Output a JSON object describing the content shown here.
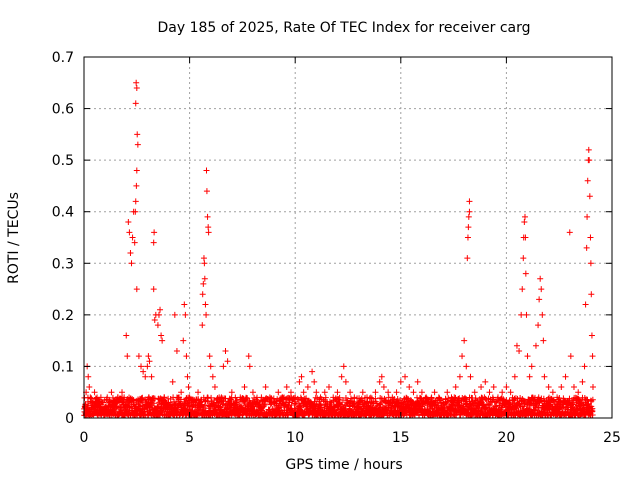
{
  "chart_data": {
    "type": "scatter",
    "title": "Day 185 of 2025, Rate Of TEC Index for receiver carg",
    "xlabel": "GPS time / hours",
    "ylabel": "ROTI / TECUs",
    "xlim": [
      0,
      25
    ],
    "ylim": [
      0,
      0.7
    ],
    "grid": true,
    "marker": "+",
    "color": "#ff0000",
    "xticks": [
      0,
      5,
      10,
      15,
      20,
      25
    ],
    "xtick_labels": [
      "0",
      "5",
      "10",
      "15",
      "20",
      "25"
    ],
    "yticks": [
      0,
      0.1,
      0.2,
      0.3,
      0.4,
      0.5,
      0.6,
      0.7
    ],
    "ytick_labels": [
      "0",
      "0.1",
      "0.2",
      "0.3",
      "0.4",
      "0.5",
      "0.6",
      "0.7"
    ],
    "series": [
      {
        "name": "ROTI",
        "points": [
          [
            0.05,
            0.02
          ],
          [
            0.1,
            0.05
          ],
          [
            0.15,
            0.1
          ],
          [
            0.2,
            0.08
          ],
          [
            0.25,
            0.06
          ],
          [
            0.3,
            0.04
          ],
          [
            0.4,
            0.03
          ],
          [
            0.5,
            0.05
          ],
          [
            0.6,
            0.03
          ],
          [
            0.7,
            0.02
          ],
          [
            0.8,
            0.04
          ],
          [
            0.9,
            0.03
          ],
          [
            1.0,
            0.02
          ],
          [
            1.1,
            0.04
          ],
          [
            1.2,
            0.03
          ],
          [
            1.3,
            0.05
          ],
          [
            1.4,
            0.02
          ],
          [
            1.5,
            0.03
          ],
          [
            1.6,
            0.04
          ],
          [
            1.7,
            0.03
          ],
          [
            1.8,
            0.05
          ],
          [
            1.9,
            0.04
          ],
          [
            2.0,
            0.16
          ],
          [
            2.05,
            0.12
          ],
          [
            2.1,
            0.38
          ],
          [
            2.15,
            0.36
          ],
          [
            2.2,
            0.32
          ],
          [
            2.25,
            0.3
          ],
          [
            2.3,
            0.35
          ],
          [
            2.35,
            0.4
          ],
          [
            2.4,
            0.34
          ],
          [
            2.45,
            0.61
          ],
          [
            2.47,
            0.65
          ],
          [
            2.5,
            0.64
          ],
          [
            2.52,
            0.55
          ],
          [
            2.55,
            0.53
          ],
          [
            2.5,
            0.48
          ],
          [
            2.48,
            0.45
          ],
          [
            2.45,
            0.42
          ],
          [
            2.43,
            0.4
          ],
          [
            2.5,
            0.25
          ],
          [
            2.6,
            0.12
          ],
          [
            2.7,
            0.1
          ],
          [
            2.8,
            0.09
          ],
          [
            2.9,
            0.08
          ],
          [
            3.0,
            0.1
          ],
          [
            3.05,
            0.12
          ],
          [
            3.1,
            0.11
          ],
          [
            3.2,
            0.08
          ],
          [
            3.3,
            0.34
          ],
          [
            3.32,
            0.36
          ],
          [
            3.3,
            0.25
          ],
          [
            3.35,
            0.19
          ],
          [
            3.4,
            0.2
          ],
          [
            3.5,
            0.18
          ],
          [
            3.55,
            0.2
          ],
          [
            3.6,
            0.21
          ],
          [
            3.65,
            0.16
          ],
          [
            3.7,
            0.15
          ],
          [
            3.8,
            0.04
          ],
          [
            4.0,
            0.03
          ],
          [
            4.2,
            0.07
          ],
          [
            4.3,
            0.2
          ],
          [
            4.4,
            0.13
          ],
          [
            4.5,
            0.04
          ],
          [
            4.6,
            0.05
          ],
          [
            4.7,
            0.15
          ],
          [
            4.75,
            0.22
          ],
          [
            4.8,
            0.2
          ],
          [
            4.85,
            0.12
          ],
          [
            4.9,
            0.08
          ],
          [
            4.95,
            0.06
          ],
          [
            5.0,
            0.04
          ],
          [
            5.2,
            0.03
          ],
          [
            5.4,
            0.05
          ],
          [
            5.6,
            0.18
          ],
          [
            5.62,
            0.24
          ],
          [
            5.65,
            0.26
          ],
          [
            5.68,
            0.31
          ],
          [
            5.7,
            0.3
          ],
          [
            5.72,
            0.27
          ],
          [
            5.75,
            0.22
          ],
          [
            5.78,
            0.2
          ],
          [
            5.8,
            0.48
          ],
          [
            5.82,
            0.44
          ],
          [
            5.85,
            0.39
          ],
          [
            5.88,
            0.37
          ],
          [
            5.9,
            0.36
          ],
          [
            5.95,
            0.12
          ],
          [
            6.0,
            0.1
          ],
          [
            6.1,
            0.08
          ],
          [
            6.2,
            0.06
          ],
          [
            6.4,
            0.04
          ],
          [
            6.6,
            0.1
          ],
          [
            6.7,
            0.13
          ],
          [
            6.8,
            0.11
          ],
          [
            7.0,
            0.05
          ],
          [
            7.2,
            0.03
          ],
          [
            7.4,
            0.04
          ],
          [
            7.6,
            0.06
          ],
          [
            7.8,
            0.12
          ],
          [
            7.85,
            0.1
          ],
          [
            8.0,
            0.05
          ],
          [
            8.2,
            0.03
          ],
          [
            8.4,
            0.04
          ],
          [
            8.6,
            0.06
          ],
          [
            8.8,
            0.04
          ],
          [
            9.0,
            0.03
          ],
          [
            9.2,
            0.05
          ],
          [
            9.4,
            0.04
          ],
          [
            9.6,
            0.06
          ],
          [
            9.8,
            0.05
          ],
          [
            10.0,
            0.04
          ],
          [
            10.2,
            0.07
          ],
          [
            10.3,
            0.08
          ],
          [
            10.4,
            0.05
          ],
          [
            10.6,
            0.06
          ],
          [
            10.8,
            0.09
          ],
          [
            10.9,
            0.07
          ],
          [
            11.0,
            0.05
          ],
          [
            11.2,
            0.04
          ],
          [
            11.4,
            0.05
          ],
          [
            11.6,
            0.06
          ],
          [
            11.8,
            0.04
          ],
          [
            12.0,
            0.05
          ],
          [
            12.2,
            0.08
          ],
          [
            12.3,
            0.1
          ],
          [
            12.4,
            0.07
          ],
          [
            12.6,
            0.05
          ],
          [
            12.8,
            0.04
          ],
          [
            13.0,
            0.03
          ],
          [
            13.2,
            0.05
          ],
          [
            13.4,
            0.04
          ],
          [
            13.6,
            0.03
          ],
          [
            13.8,
            0.05
          ],
          [
            14.0,
            0.07
          ],
          [
            14.1,
            0.08
          ],
          [
            14.2,
            0.06
          ],
          [
            14.4,
            0.05
          ],
          [
            14.6,
            0.04
          ],
          [
            14.8,
            0.05
          ],
          [
            15.0,
            0.07
          ],
          [
            15.2,
            0.08
          ],
          [
            15.4,
            0.06
          ],
          [
            15.6,
            0.05
          ],
          [
            15.8,
            0.07
          ],
          [
            16.0,
            0.05
          ],
          [
            16.2,
            0.04
          ],
          [
            16.4,
            0.03
          ],
          [
            16.6,
            0.05
          ],
          [
            16.8,
            0.04
          ],
          [
            17.0,
            0.03
          ],
          [
            17.2,
            0.05
          ],
          [
            17.4,
            0.04
          ],
          [
            17.6,
            0.06
          ],
          [
            17.8,
            0.08
          ],
          [
            17.9,
            0.12
          ],
          [
            18.0,
            0.15
          ],
          [
            18.1,
            0.1
          ],
          [
            18.15,
            0.31
          ],
          [
            18.18,
            0.35
          ],
          [
            18.2,
            0.37
          ],
          [
            18.22,
            0.39
          ],
          [
            18.25,
            0.42
          ],
          [
            18.25,
            0.4
          ],
          [
            18.3,
            0.08
          ],
          [
            18.5,
            0.05
          ],
          [
            18.8,
            0.06
          ],
          [
            19.0,
            0.07
          ],
          [
            19.2,
            0.05
          ],
          [
            19.4,
            0.06
          ],
          [
            19.6,
            0.04
          ],
          [
            19.8,
            0.05
          ],
          [
            20.0,
            0.06
          ],
          [
            20.2,
            0.05
          ],
          [
            20.4,
            0.08
          ],
          [
            20.5,
            0.14
          ],
          [
            20.6,
            0.13
          ],
          [
            20.7,
            0.2
          ],
          [
            20.75,
            0.25
          ],
          [
            20.8,
            0.31
          ],
          [
            20.82,
            0.35
          ],
          [
            20.85,
            0.38
          ],
          [
            20.88,
            0.39
          ],
          [
            20.9,
            0.35
          ],
          [
            20.92,
            0.28
          ],
          [
            20.95,
            0.2
          ],
          [
            21.0,
            0.12
          ],
          [
            21.1,
            0.08
          ],
          [
            21.2,
            0.1
          ],
          [
            21.4,
            0.14
          ],
          [
            21.5,
            0.18
          ],
          [
            21.55,
            0.23
          ],
          [
            21.6,
            0.27
          ],
          [
            21.65,
            0.25
          ],
          [
            21.7,
            0.2
          ],
          [
            21.75,
            0.15
          ],
          [
            21.8,
            0.08
          ],
          [
            22.0,
            0.06
          ],
          [
            22.2,
            0.05
          ],
          [
            22.4,
            0.04
          ],
          [
            22.6,
            0.06
          ],
          [
            22.8,
            0.08
          ],
          [
            23.0,
            0.36
          ],
          [
            23.05,
            0.12
          ],
          [
            23.2,
            0.06
          ],
          [
            23.4,
            0.05
          ],
          [
            23.6,
            0.07
          ],
          [
            23.7,
            0.1
          ],
          [
            23.75,
            0.22
          ],
          [
            23.8,
            0.33
          ],
          [
            23.82,
            0.39
          ],
          [
            23.85,
            0.46
          ],
          [
            23.88,
            0.5
          ],
          [
            23.9,
            0.52
          ],
          [
            23.92,
            0.5
          ],
          [
            23.95,
            0.43
          ],
          [
            23.98,
            0.35
          ],
          [
            24.0,
            0.3
          ],
          [
            24.02,
            0.24
          ],
          [
            24.05,
            0.16
          ],
          [
            24.08,
            0.12
          ],
          [
            24.1,
            0.06
          ]
        ]
      }
    ],
    "baseline_band": {
      "description": "dense low-value noise across the full day",
      "x_range": [
        0,
        24.1
      ],
      "y_range": [
        0.005,
        0.04
      ]
    }
  }
}
